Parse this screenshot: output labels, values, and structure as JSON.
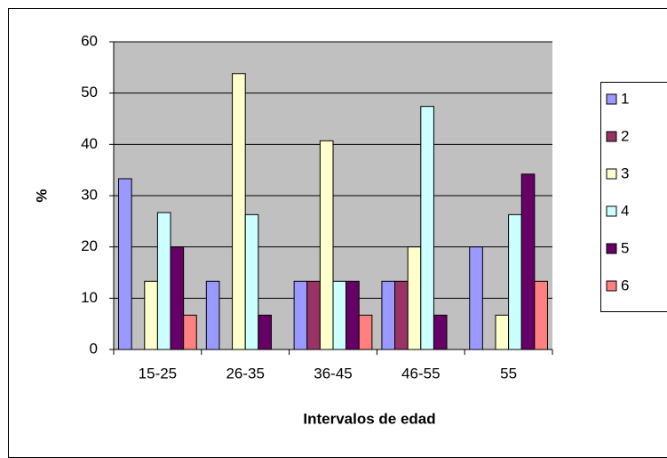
{
  "chart_data": {
    "type": "bar",
    "categories": [
      "15-25",
      "26-35",
      "36-45",
      "46-55",
      "55"
    ],
    "x_label": "Intervalos de edad",
    "y_label": "%",
    "ylim": [
      0,
      60
    ],
    "yticks": [
      0,
      10,
      20,
      30,
      40,
      50,
      60
    ],
    "grid": true,
    "legend": "right",
    "series": [
      {
        "name": "1",
        "color": "#9999ff",
        "values": [
          33.3,
          13.3,
          13.3,
          13.3,
          20
        ]
      },
      {
        "name": "2",
        "color": "#993366",
        "values": [
          0,
          0,
          13.3,
          13.3,
          0
        ]
      },
      {
        "name": "3",
        "color": "#ffffcc",
        "values": [
          13.3,
          53.8,
          40.7,
          20,
          6.7
        ]
      },
      {
        "name": "4",
        "color": "#ccffff",
        "values": [
          26.7,
          26.3,
          13.3,
          47.4,
          26.3
        ]
      },
      {
        "name": "5",
        "color": "#660066",
        "values": [
          20,
          6.7,
          13.3,
          6.7,
          34.2
        ]
      },
      {
        "name": "6",
        "color": "#ff8080",
        "values": [
          6.7,
          0,
          6.7,
          0,
          13.3
        ]
      }
    ]
  }
}
